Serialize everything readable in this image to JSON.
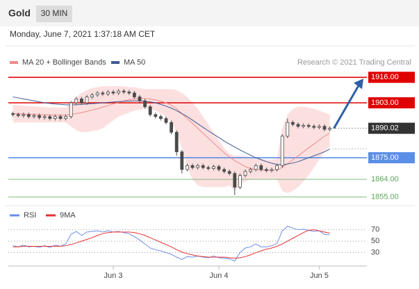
{
  "header": {
    "tabs": [
      "Gold",
      "30 MIN"
    ],
    "timestamp": "Monday, June 7, 2021 1:37:18 AM CET"
  },
  "chart_data": [
    {
      "type": "candlestick",
      "credit": "Research © 2021 Trading Central",
      "categories": [
        null,
        null,
        null,
        null,
        null,
        null,
        null,
        null,
        null,
        null,
        null,
        null,
        null,
        null,
        null,
        null,
        null,
        null,
        null,
        "Jun 3",
        null,
        null,
        null,
        null,
        null,
        null,
        null,
        null,
        null,
        null,
        null,
        null,
        null,
        null,
        null,
        null,
        null,
        null,
        null,
        "Jun 4",
        null,
        null,
        null,
        null,
        null,
        null,
        null,
        null,
        null,
        null,
        null,
        null,
        null,
        null,
        null,
        null,
        null,
        null,
        "Jun 5",
        null,
        null
      ],
      "open": [
        1897.5,
        1897,
        1896.5,
        1897,
        1896,
        1896.5,
        1895.5,
        1896,
        1895,
        1896,
        1895,
        1896,
        1903,
        1905,
        1903,
        1906,
        1907,
        1908,
        1907.5,
        1908.5,
        1908,
        1909,
        1908.5,
        1908,
        1906,
        1904,
        1901,
        1897,
        1896,
        1895,
        1893,
        1888,
        1878,
        1869,
        1871,
        1870,
        1871,
        1870,
        1869.5,
        1870.5,
        1869,
        1868,
        1867,
        1860,
        1866,
        1868,
        1869,
        1871,
        1869,
        1868.5,
        1869,
        1871,
        1886,
        1893,
        1892,
        1891,
        1891.5,
        1891,
        1890.5,
        1891,
        1889.5
      ],
      "high": [
        1898.5,
        1898,
        1898,
        1898,
        1897.5,
        1897.5,
        1897,
        1897,
        1897,
        1897,
        1897,
        1904,
        1906,
        1906,
        1907,
        1908,
        1909,
        1909,
        1909.5,
        1909.5,
        1910,
        1910,
        1909.5,
        1909,
        1907,
        1905,
        1902,
        1898,
        1897,
        1896,
        1894,
        1889,
        1879,
        1872,
        1872,
        1872,
        1872,
        1871,
        1871.5,
        1871.5,
        1870,
        1869,
        1868,
        1867,
        1869,
        1870,
        1872,
        1872,
        1870,
        1870,
        1872,
        1887,
        1895,
        1894,
        1893,
        1892.5,
        1892.5,
        1892,
        1892,
        1892,
        1891
      ],
      "low": [
        1896,
        1895.5,
        1895.5,
        1895,
        1895,
        1894.5,
        1894.5,
        1894,
        1894,
        1894,
        1894,
        1895,
        1902,
        1902,
        1902,
        1905,
        1906,
        1906.5,
        1906.5,
        1907,
        1907,
        1907.5,
        1907,
        1905,
        1903,
        1900,
        1896,
        1895,
        1894,
        1892,
        1887,
        1876,
        1867,
        1868,
        1869,
        1869,
        1869,
        1868.5,
        1868.5,
        1868,
        1867,
        1866,
        1856,
        1859,
        1865,
        1867,
        1868,
        1868,
        1867.5,
        1867.5,
        1868,
        1870,
        1885,
        1891,
        1890,
        1890,
        1890,
        1889.5,
        1889.5,
        1888.5,
        1888.5
      ],
      "close": [
        1897,
        1896.5,
        1897,
        1896,
        1896.5,
        1895.5,
        1896,
        1895,
        1896,
        1895,
        1896,
        1903,
        1905,
        1903,
        1906,
        1907,
        1908,
        1907.5,
        1908.5,
        1908,
        1909,
        1908.5,
        1908,
        1906,
        1904,
        1901,
        1897,
        1896,
        1895,
        1893,
        1888,
        1878,
        1869,
        1871,
        1870,
        1871,
        1870,
        1869.5,
        1870.5,
        1869,
        1868,
        1867,
        1860,
        1866,
        1868,
        1869,
        1871,
        1869,
        1868.5,
        1869,
        1871,
        1886,
        1893,
        1892,
        1891,
        1891.5,
        1891,
        1890.5,
        1891,
        1889.5,
        1890.02
      ],
      "candle_colors": {
        "up": "#ffffff",
        "down": "#4a4a4a",
        "edge": "#4a4a4a"
      },
      "series": [
        {
          "name": "MA 20 + Bollinger Bands",
          "color": "#f08a8a",
          "band_color": "#fbd3d3",
          "values": [
            1897.5,
            1897.4,
            1897.3,
            1897.2,
            1897.1,
            1897,
            1896.9,
            1896.8,
            1896.8,
            1896.7,
            1896.7,
            1897,
            1897.5,
            1898,
            1898.6,
            1899.3,
            1900,
            1900.8,
            1901.6,
            1902.4,
            1903.2,
            1904,
            1904.6,
            1905,
            1905.2,
            1905.2,
            1905,
            1904.5,
            1903.8,
            1903,
            1901.8,
            1900,
            1897.5,
            1895,
            1892.5,
            1890,
            1887.5,
            1885,
            1882.5,
            1880,
            1877.5,
            1875.5,
            1873.5,
            1872,
            1870.5,
            1869.5,
            1869,
            1868.8,
            1868.6,
            1868.6,
            1868.8,
            1870,
            1872,
            1874,
            1876,
            1878,
            1880,
            1882,
            1884,
            1886,
            1887.5
          ],
          "upper": [
            1902,
            1901.8,
            1901.6,
            1901.4,
            1901.2,
            1901,
            1900.8,
            1900.6,
            1900.6,
            1900.6,
            1900.6,
            1903,
            1906,
            1908,
            1909.5,
            1910.5,
            1911,
            1911.5,
            1911.5,
            1911.5,
            1911.5,
            1911.5,
            1911,
            1911,
            1910.5,
            1910,
            1910,
            1910,
            1910,
            1910,
            1910,
            1909.5,
            1908,
            1906,
            1903,
            1900,
            1896,
            1892,
            1888,
            1884,
            1880,
            1877,
            1876,
            1876,
            1876,
            1875,
            1875,
            1874.5,
            1874,
            1874,
            1874.5,
            1890,
            1897,
            1900,
            1901,
            1901,
            1900.5,
            1900,
            1899,
            1898,
            1897
          ],
          "lower": [
            1893,
            1893,
            1893,
            1893,
            1893,
            1893,
            1893,
            1893,
            1893,
            1893,
            1893,
            1891,
            1889,
            1888,
            1888,
            1888.5,
            1889,
            1890,
            1892,
            1894,
            1896,
            1897,
            1898,
            1899,
            1899.5,
            1900,
            1900,
            1899,
            1897.5,
            1896,
            1893,
            1888,
            1880,
            1870,
            1864,
            1861,
            1860,
            1860,
            1860,
            1860,
            1860,
            1861,
            1858,
            1861,
            1863,
            1864,
            1864,
            1864,
            1864,
            1864,
            1864,
            1858,
            1857,
            1858,
            1860,
            1863,
            1866,
            1870,
            1874,
            1878,
            1881
          ]
        },
        {
          "name": "MA 50",
          "color": "#3d5a94",
          "values": [
            1906,
            1905.5,
            1905,
            1904.5,
            1904,
            1903.5,
            1903,
            1902.7,
            1902.4,
            1902.2,
            1902,
            1902,
            1902,
            1902.2,
            1902.4,
            1902.6,
            1902.8,
            1903,
            1903.2,
            1903.4,
            1903.6,
            1903.8,
            1903.9,
            1904,
            1904,
            1903.8,
            1903.5,
            1903,
            1902.2,
            1901.3,
            1900.3,
            1899,
            1897.5,
            1896,
            1894.2,
            1892.3,
            1890.5,
            1888.7,
            1887,
            1885.3,
            1883.5,
            1882,
            1880.5,
            1879,
            1877.6,
            1876.3,
            1875,
            1874,
            1873,
            1872.2,
            1871.6,
            1871.5,
            1871.8,
            1872.3,
            1873,
            1874,
            1875,
            1876,
            1877,
            1878,
            1879.5
          ]
        }
      ],
      "levels": [
        {
          "value": 1916,
          "label": "1916.00",
          "color": "#e00000",
          "style": "box"
        },
        {
          "value": 1903,
          "label": "1903.00",
          "color": "#e00000",
          "style": "box"
        },
        {
          "value": 1890.02,
          "label": "1890.02",
          "color": "#333333",
          "style": "dotted"
        },
        {
          "value": 1875,
          "label": "1875.00",
          "color": "#5b8ee6",
          "style": "box"
        },
        {
          "value": 1864,
          "label": "1864.00",
          "color": "#5aa85a",
          "style": "text"
        },
        {
          "value": 1855,
          "label": "1855.00",
          "color": "#5aa85a",
          "style": "text"
        }
      ],
      "ylim": [
        1852,
        1920
      ]
    },
    {
      "type": "line",
      "series": [
        {
          "name": "RSI",
          "color": "#6a8ee8",
          "values": [
            42,
            40,
            43,
            40,
            41,
            39,
            42,
            39,
            43,
            41,
            45,
            62,
            67,
            60,
            66,
            67,
            68,
            66,
            68,
            66,
            67,
            65,
            63,
            58,
            52,
            45,
            38,
            35,
            33,
            30,
            27,
            22,
            18,
            23,
            22,
            24,
            22,
            21,
            24,
            21,
            20,
            19,
            15,
            30,
            38,
            40,
            45,
            40,
            40,
            42,
            46,
            68,
            76,
            73,
            70,
            71,
            69,
            67,
            68,
            62,
            61
          ]
        },
        {
          "name": "9MA",
          "color": "#e83030",
          "values": [
            40,
            40,
            41,
            41,
            41,
            41,
            41,
            41,
            41,
            41,
            42,
            44,
            47,
            50,
            53,
            56,
            60,
            63,
            65,
            66,
            66,
            66,
            66,
            65,
            63,
            60,
            56,
            52,
            48,
            44,
            40,
            35,
            31,
            28,
            26,
            24,
            23,
            22,
            22,
            22,
            22,
            21,
            20,
            21,
            23,
            26,
            30,
            33,
            36,
            38,
            41,
            45,
            50,
            55,
            60,
            65,
            69,
            70,
            68,
            66,
            64
          ]
        }
      ],
      "ylim": [
        10,
        100
      ],
      "yticks": [
        70,
        50,
        30
      ]
    }
  ]
}
